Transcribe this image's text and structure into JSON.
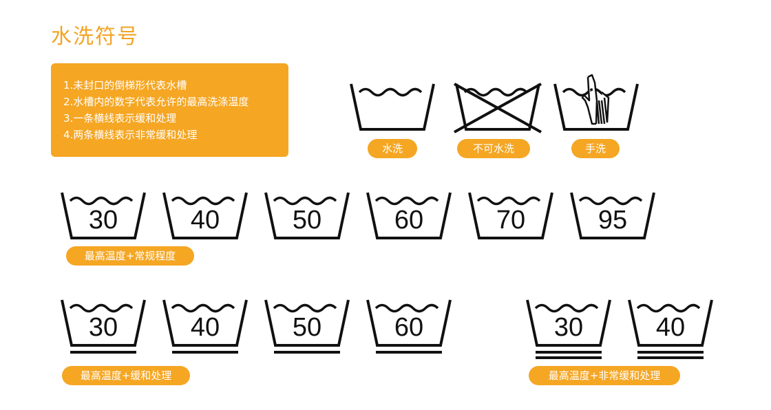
{
  "page_title": "水洗符号",
  "notes": [
    "1.未封口的倒梯形代表水槽",
    "2.水槽内的数字代表允许的最高洗涤温度",
    "3.一条横线表示缓和处理",
    "4.两条横线表示非常缓和处理"
  ],
  "basic_symbols": {
    "labels": [
      "水洗",
      "不可水洗",
      "手洗"
    ],
    "icons": [
      "washtub-icon",
      "do-not-wash-icon",
      "hand-wash-icon"
    ]
  },
  "normal_row": {
    "temps": [
      "30",
      "40",
      "50",
      "60",
      "70",
      "95"
    ],
    "label": "最高温度+常规程度"
  },
  "gentle_row": {
    "temps": [
      "30",
      "40",
      "50",
      "60"
    ],
    "label": "最高温度+缓和处理"
  },
  "very_gentle_row": {
    "temps": [
      "30",
      "40"
    ],
    "label": "最高温度+非常缓和处理"
  },
  "colors": {
    "accent": "#f5a623",
    "title": "#f2a423",
    "icon_stroke": "#111111"
  }
}
